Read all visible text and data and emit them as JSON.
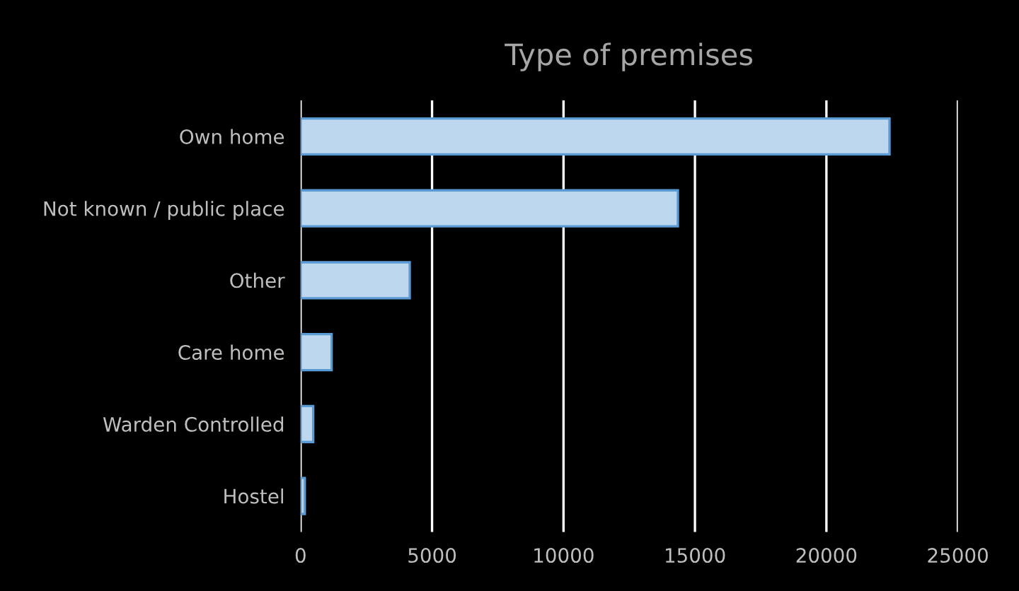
{
  "chart_data": {
    "type": "bar",
    "orientation": "horizontal",
    "title": "Type of premises",
    "categories": [
      "Own home",
      "Not known / public place",
      "Other",
      "Care home",
      "Warden Controlled",
      "Hostel"
    ],
    "values": [
      22400,
      14350,
      4150,
      1180,
      480,
      160
    ],
    "color": "#bdd7ee",
    "xlim": [
      0,
      25000
    ],
    "xticks": [
      0,
      5000,
      10000,
      15000,
      20000,
      25000
    ],
    "grid": "x"
  }
}
